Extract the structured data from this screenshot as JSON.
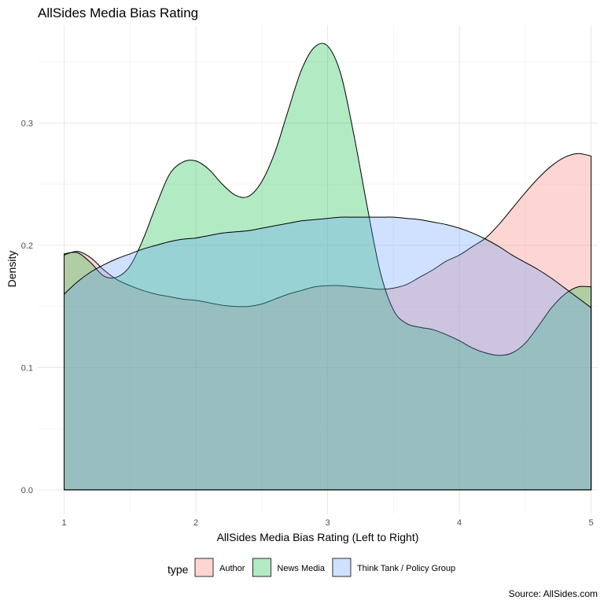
{
  "chart_data": {
    "type": "area",
    "subtype": "density",
    "title": "AllSides Media Bias Rating",
    "xlabel": "AllSides Media Bias Rating (Left to Right)",
    "ylabel": "Density",
    "caption": "Source: AllSides.com",
    "xlim": [
      0.8,
      5.05
    ],
    "ylim": [
      -0.02,
      0.38
    ],
    "x_ticks": [
      1,
      2,
      3,
      4,
      5
    ],
    "x_tick_labels": [
      "1",
      "2",
      "3",
      "4",
      "5"
    ],
    "y_ticks": [
      0.0,
      0.1,
      0.2,
      0.3
    ],
    "y_tick_labels": [
      "0.0",
      "0.1",
      "0.2",
      "0.3"
    ],
    "grid": true,
    "legend": {
      "title": "type",
      "position": "bottom"
    },
    "series": [
      {
        "name": "Author",
        "color": "#F8766D",
        "x": [
          1.0,
          1.1,
          1.2,
          1.3,
          1.4,
          1.5,
          1.6,
          1.7,
          1.8,
          1.9,
          2.0,
          2.1,
          2.2,
          2.3,
          2.4,
          2.5,
          2.6,
          2.7,
          2.8,
          2.9,
          3.0,
          3.1,
          3.2,
          3.3,
          3.4,
          3.5,
          3.6,
          3.7,
          3.8,
          3.9,
          4.0,
          4.1,
          4.2,
          4.3,
          4.4,
          4.5,
          4.6,
          4.7,
          4.8,
          4.9,
          5.0
        ],
        "y": [
          0.192,
          0.195,
          0.19,
          0.18,
          0.172,
          0.167,
          0.163,
          0.16,
          0.158,
          0.156,
          0.155,
          0.153,
          0.151,
          0.15,
          0.15,
          0.152,
          0.156,
          0.16,
          0.163,
          0.166,
          0.167,
          0.167,
          0.166,
          0.165,
          0.164,
          0.165,
          0.168,
          0.174,
          0.18,
          0.187,
          0.192,
          0.199,
          0.206,
          0.217,
          0.23,
          0.243,
          0.255,
          0.265,
          0.272,
          0.275,
          0.273
        ]
      },
      {
        "name": "News Media",
        "color": "#00BA38",
        "x": [
          1.0,
          1.1,
          1.2,
          1.3,
          1.4,
          1.5,
          1.6,
          1.7,
          1.8,
          1.9,
          2.0,
          2.1,
          2.2,
          2.3,
          2.4,
          2.5,
          2.6,
          2.7,
          2.8,
          2.9,
          3.0,
          3.1,
          3.2,
          3.3,
          3.4,
          3.5,
          3.6,
          3.7,
          3.8,
          3.9,
          4.0,
          4.1,
          4.2,
          4.3,
          4.4,
          4.5,
          4.6,
          4.7,
          4.8,
          4.9,
          5.0
        ],
        "y": [
          0.193,
          0.194,
          0.186,
          0.175,
          0.174,
          0.183,
          0.205,
          0.233,
          0.258,
          0.268,
          0.269,
          0.262,
          0.25,
          0.241,
          0.24,
          0.252,
          0.276,
          0.31,
          0.343,
          0.362,
          0.363,
          0.34,
          0.29,
          0.232,
          0.178,
          0.147,
          0.136,
          0.133,
          0.131,
          0.127,
          0.122,
          0.116,
          0.112,
          0.11,
          0.112,
          0.12,
          0.134,
          0.149,
          0.16,
          0.166,
          0.166
        ]
      },
      {
        "name": "Think Tank / Policy Group",
        "color": "#619CFF",
        "x": [
          1.0,
          1.1,
          1.2,
          1.3,
          1.4,
          1.5,
          1.6,
          1.7,
          1.8,
          1.9,
          2.0,
          2.1,
          2.2,
          2.3,
          2.4,
          2.5,
          2.6,
          2.7,
          2.8,
          2.9,
          3.0,
          3.1,
          3.2,
          3.3,
          3.4,
          3.5,
          3.6,
          3.7,
          3.8,
          3.9,
          4.0,
          4.1,
          4.2,
          4.3,
          4.4,
          4.5,
          4.6,
          4.7,
          4.8,
          4.9,
          5.0
        ],
        "y": [
          0.16,
          0.17,
          0.178,
          0.184,
          0.189,
          0.193,
          0.197,
          0.2,
          0.203,
          0.205,
          0.206,
          0.208,
          0.21,
          0.211,
          0.212,
          0.214,
          0.216,
          0.218,
          0.22,
          0.221,
          0.222,
          0.223,
          0.223,
          0.223,
          0.223,
          0.223,
          0.222,
          0.221,
          0.219,
          0.217,
          0.214,
          0.21,
          0.205,
          0.199,
          0.192,
          0.186,
          0.18,
          0.173,
          0.165,
          0.157,
          0.149
        ]
      }
    ]
  }
}
